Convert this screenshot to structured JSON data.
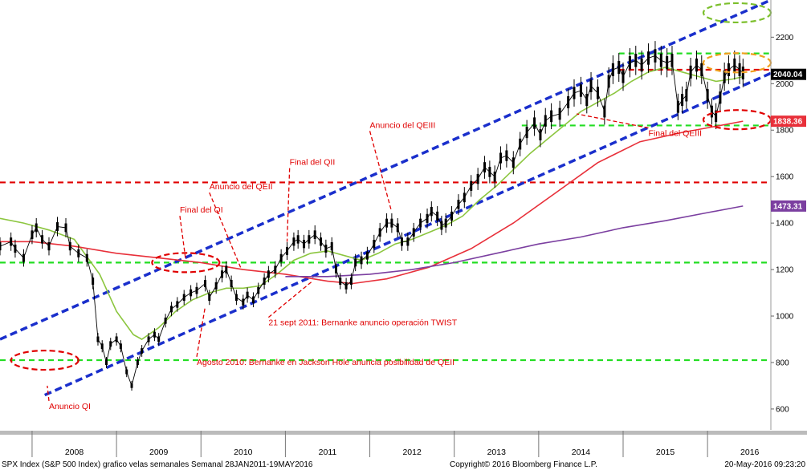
{
  "chart_data": {
    "type": "line",
    "title": "",
    "xlabel": "",
    "ylabel": "",
    "x_range": [
      2007.62,
      2016.75
    ],
    "ylim": [
      510,
      2360
    ],
    "y_ticks": [
      600,
      800,
      1000,
      1200,
      1400,
      1600,
      1800,
      2000,
      2200
    ],
    "x_years": [
      "2008",
      "2009",
      "2010",
      "2011",
      "2012",
      "2013",
      "2014",
      "2015",
      "2016"
    ],
    "grid": false,
    "series": [
      {
        "name": "",
        "kind": "weekly-candles",
        "color": "#000000",
        "points": [
          [
            2007.62,
            1300
          ],
          [
            2007.75,
            1320
          ],
          [
            2007.8,
            1290
          ],
          [
            2007.9,
            1250
          ],
          [
            2008.0,
            1350
          ],
          [
            2008.05,
            1380
          ],
          [
            2008.12,
            1330
          ],
          [
            2008.2,
            1300
          ],
          [
            2008.3,
            1385
          ],
          [
            2008.4,
            1380
          ],
          [
            2008.45,
            1300
          ],
          [
            2008.55,
            1270
          ],
          [
            2008.65,
            1250
          ],
          [
            2008.72,
            1150
          ],
          [
            2008.78,
            900
          ],
          [
            2008.83,
            870
          ],
          [
            2008.88,
            800
          ],
          [
            2008.93,
            880
          ],
          [
            2009.0,
            900
          ],
          [
            2009.05,
            870
          ],
          [
            2009.12,
            760
          ],
          [
            2009.18,
            700
          ],
          [
            2009.25,
            800
          ],
          [
            2009.3,
            850
          ],
          [
            2009.38,
            900
          ],
          [
            2009.45,
            920
          ],
          [
            2009.5,
            900
          ],
          [
            2009.58,
            980
          ],
          [
            2009.65,
            1030
          ],
          [
            2009.72,
            1050
          ],
          [
            2009.8,
            1080
          ],
          [
            2009.88,
            1100
          ],
          [
            2009.95,
            1110
          ],
          [
            2010.05,
            1140
          ],
          [
            2010.1,
            1080
          ],
          [
            2010.18,
            1130
          ],
          [
            2010.25,
            1180
          ],
          [
            2010.3,
            1200
          ],
          [
            2010.36,
            1140
          ],
          [
            2010.42,
            1080
          ],
          [
            2010.5,
            1060
          ],
          [
            2010.55,
            1090
          ],
          [
            2010.62,
            1070
          ],
          [
            2010.68,
            1110
          ],
          [
            2010.75,
            1150
          ],
          [
            2010.8,
            1180
          ],
          [
            2010.88,
            1200
          ],
          [
            2010.95,
            1250
          ],
          [
            2011.02,
            1280
          ],
          [
            2011.1,
            1320
          ],
          [
            2011.15,
            1330
          ],
          [
            2011.22,
            1310
          ],
          [
            2011.28,
            1330
          ],
          [
            2011.35,
            1350
          ],
          [
            2011.42,
            1320
          ],
          [
            2011.48,
            1290
          ],
          [
            2011.55,
            1300
          ],
          [
            2011.6,
            1200
          ],
          [
            2011.65,
            1150
          ],
          [
            2011.72,
            1130
          ],
          [
            2011.78,
            1150
          ],
          [
            2011.83,
            1230
          ],
          [
            2011.9,
            1240
          ],
          [
            2011.97,
            1260
          ],
          [
            2012.05,
            1310
          ],
          [
            2012.12,
            1360
          ],
          [
            2012.2,
            1400
          ],
          [
            2012.26,
            1400
          ],
          [
            2012.33,
            1380
          ],
          [
            2012.38,
            1320
          ],
          [
            2012.45,
            1320
          ],
          [
            2012.52,
            1360
          ],
          [
            2012.6,
            1400
          ],
          [
            2012.68,
            1420
          ],
          [
            2012.73,
            1450
          ],
          [
            2012.8,
            1430
          ],
          [
            2012.85,
            1390
          ],
          [
            2012.9,
            1400
          ],
          [
            2012.97,
            1430
          ],
          [
            2013.05,
            1480
          ],
          [
            2013.12,
            1510
          ],
          [
            2013.2,
            1560
          ],
          [
            2013.28,
            1590
          ],
          [
            2013.36,
            1640
          ],
          [
            2013.42,
            1620
          ],
          [
            2013.48,
            1600
          ],
          [
            2013.55,
            1680
          ],
          [
            2013.62,
            1690
          ],
          [
            2013.7,
            1660
          ],
          [
            2013.78,
            1740
          ],
          [
            2013.86,
            1790
          ],
          [
            2013.95,
            1830
          ],
          [
            2014.02,
            1780
          ],
          [
            2014.08,
            1840
          ],
          [
            2014.15,
            1860
          ],
          [
            2014.25,
            1870
          ],
          [
            2014.35,
            1920
          ],
          [
            2014.42,
            1960
          ],
          [
            2014.5,
            1970
          ],
          [
            2014.57,
            1930
          ],
          [
            2014.62,
            1990
          ],
          [
            2014.7,
            1960
          ],
          [
            2014.78,
            1880
          ],
          [
            2014.83,
            2010
          ],
          [
            2014.88,
            2060
          ],
          [
            2014.95,
            2070
          ],
          [
            2015.0,
            2030
          ],
          [
            2015.08,
            2090
          ],
          [
            2015.15,
            2100
          ],
          [
            2015.22,
            2080
          ],
          [
            2015.3,
            2110
          ],
          [
            2015.38,
            2120
          ],
          [
            2015.45,
            2100
          ],
          [
            2015.52,
            2090
          ],
          [
            2015.58,
            2100
          ],
          [
            2015.65,
            1900
          ],
          [
            2015.7,
            1930
          ],
          [
            2015.75,
            1950
          ],
          [
            2015.8,
            2050
          ],
          [
            2015.87,
            2080
          ],
          [
            2015.93,
            2060
          ],
          [
            2016.0,
            1950
          ],
          [
            2016.05,
            1880
          ],
          [
            2016.1,
            1860
          ],
          [
            2016.15,
            1940
          ],
          [
            2016.2,
            2030
          ],
          [
            2016.25,
            2060
          ],
          [
            2016.32,
            2080
          ],
          [
            2016.38,
            2060
          ],
          [
            2016.42,
            2046
          ]
        ]
      },
      {
        "name": "",
        "kind": "moving-average",
        "color": "#8cc63f",
        "points": [
          [
            2007.62,
            1420
          ],
          [
            2007.9,
            1400
          ],
          [
            2008.2,
            1370
          ],
          [
            2008.5,
            1330
          ],
          [
            2008.8,
            1180
          ],
          [
            2009.0,
            1020
          ],
          [
            2009.2,
            920
          ],
          [
            2009.3,
            900
          ],
          [
            2009.5,
            950
          ],
          [
            2009.7,
            1020
          ],
          [
            2009.9,
            1070
          ],
          [
            2010.1,
            1100
          ],
          [
            2010.3,
            1120
          ],
          [
            2010.5,
            1120
          ],
          [
            2010.7,
            1130
          ],
          [
            2010.9,
            1180
          ],
          [
            2011.1,
            1240
          ],
          [
            2011.3,
            1270
          ],
          [
            2011.5,
            1280
          ],
          [
            2011.7,
            1260
          ],
          [
            2011.9,
            1240
          ],
          [
            2012.1,
            1270
          ],
          [
            2012.3,
            1310
          ],
          [
            2012.5,
            1330
          ],
          [
            2012.7,
            1360
          ],
          [
            2012.9,
            1390
          ],
          [
            2013.1,
            1430
          ],
          [
            2013.3,
            1500
          ],
          [
            2013.5,
            1560
          ],
          [
            2013.7,
            1630
          ],
          [
            2013.9,
            1700
          ],
          [
            2014.1,
            1760
          ],
          [
            2014.3,
            1820
          ],
          [
            2014.5,
            1880
          ],
          [
            2014.7,
            1920
          ],
          [
            2014.9,
            1960
          ],
          [
            2015.1,
            2010
          ],
          [
            2015.3,
            2050
          ],
          [
            2015.5,
            2070
          ],
          [
            2015.7,
            2050
          ],
          [
            2015.9,
            2030
          ],
          [
            2016.1,
            2010
          ],
          [
            2016.3,
            2020
          ],
          [
            2016.42,
            2030
          ]
        ]
      },
      {
        "name": "",
        "kind": "moving-average",
        "color": "#e8303a",
        "points": [
          [
            2007.62,
            1320
          ],
          [
            2008.0,
            1320
          ],
          [
            2008.5,
            1300
          ],
          [
            2009.0,
            1270
          ],
          [
            2009.5,
            1250
          ],
          [
            2010.0,
            1230
          ],
          [
            2010.5,
            1200
          ],
          [
            2011.0,
            1180
          ],
          [
            2011.5,
            1150
          ],
          [
            2011.8,
            1140
          ],
          [
            2012.2,
            1160
          ],
          [
            2012.7,
            1210
          ],
          [
            2013.2,
            1290
          ],
          [
            2013.7,
            1400
          ],
          [
            2014.2,
            1530
          ],
          [
            2014.7,
            1660
          ],
          [
            2015.2,
            1750
          ],
          [
            2015.7,
            1790
          ],
          [
            2016.0,
            1810
          ],
          [
            2016.42,
            1838.36
          ]
        ]
      },
      {
        "name": "",
        "kind": "moving-average",
        "color": "#7b3fa0",
        "points": [
          [
            2011.0,
            1170
          ],
          [
            2011.5,
            1170
          ],
          [
            2012.0,
            1180
          ],
          [
            2012.5,
            1200
          ],
          [
            2013.0,
            1230
          ],
          [
            2013.5,
            1270
          ],
          [
            2014.0,
            1310
          ],
          [
            2014.5,
            1340
          ],
          [
            2015.0,
            1380
          ],
          [
            2015.5,
            1410
          ],
          [
            2016.0,
            1445
          ],
          [
            2016.42,
            1473.31
          ]
        ]
      }
    ],
    "channel_lines": [
      {
        "color": "#1a2fcc",
        "points": [
          [
            2007.62,
            900
          ],
          [
            2016.75,
            2360
          ]
        ]
      },
      {
        "color": "#1a2fcc",
        "points": [
          [
            2008.15,
            660
          ],
          [
            2016.75,
            2045
          ]
        ]
      }
    ],
    "horizontal_levels": [
      {
        "value": 810,
        "color": "#22dd22",
        "x_from": 2007.62
      },
      {
        "value": 1230,
        "color": "#22dd22",
        "x_from": 2007.62
      },
      {
        "value": 1575,
        "color": "#e00000",
        "x_from": 2007.62
      },
      {
        "value": 1820,
        "color": "#22dd22",
        "x_from": 2013.8
      },
      {
        "value": 2130,
        "color": "#22dd22",
        "x_from": 2014.95
      },
      {
        "value": 2060,
        "color": "#e00000",
        "x_from": 2014.95
      }
    ],
    "ellipses": [
      {
        "cx": 2016.35,
        "cy": 2305,
        "color": "#7cbf2c"
      },
      {
        "cx": 2016.35,
        "cy": 2090,
        "color": "#f0a020"
      },
      {
        "cx": 2016.35,
        "cy": 1845,
        "color": "#e00000"
      },
      {
        "cx": 2008.15,
        "cy": 810,
        "color": "#e00000"
      },
      {
        "cx": 2009.82,
        "cy": 1230,
        "color": "#e00000"
      }
    ],
    "value_tags": [
      {
        "label": "2040.04",
        "value": 2040.04,
        "bg": "#000000",
        "fg": "#ffffff"
      },
      {
        "label": "1838.36",
        "value": 1838.36,
        "bg": "#e8303a",
        "fg": "#ffffff"
      },
      {
        "label": "1473.31",
        "value": 1473.31,
        "bg": "#7b3fa0",
        "fg": "#ffffff"
      }
    ],
    "annotations": [
      {
        "text": "Anuncio QI",
        "x": 2008.2,
        "y": 600,
        "arrow_to": [
          2008.18,
          700
        ]
      },
      {
        "text": "Final del QI",
        "x": 2009.75,
        "y": 1445,
        "arrow_to": [
          2009.82,
          1240
        ]
      },
      {
        "text": "Anuncio del QEII",
        "x": 2010.1,
        "y": 1545,
        "arrow_to": [
          2010.48,
          1200
        ]
      },
      {
        "text": "Final del QII",
        "x": 2011.05,
        "y": 1650,
        "arrow_to": [
          2011.02,
          1320
        ]
      },
      {
        "text": "Anuncio del QEIII",
        "x": 2012.0,
        "y": 1810,
        "arrow_to": [
          2012.25,
          1460
        ]
      },
      {
        "text": "Final del QEIII",
        "x": 2015.3,
        "y": 1775,
        "arrow_to": [
          2014.45,
          1870
        ]
      },
      {
        "text": "21 sept 2011: Bernanke anuncio operación TWIST",
        "x": 2010.8,
        "y": 960,
        "arrow_to": [
          2011.32,
          1150
        ]
      },
      {
        "text": "Agosto 2010: Bernanke en Jackson Hole anuncia posibilidad de QEII",
        "x": 2009.95,
        "y": 790,
        "arrow_to": [
          2010.05,
          1040
        ]
      }
    ]
  },
  "footer": {
    "left": "SPX Index (S&P 500 Index) grafico velas semanales  Semanal 28JAN2011-19MAY2016",
    "center": "Copyright© 2016 Bloomberg Finance L.P.",
    "right": "20-May-2016 09:23:20"
  }
}
